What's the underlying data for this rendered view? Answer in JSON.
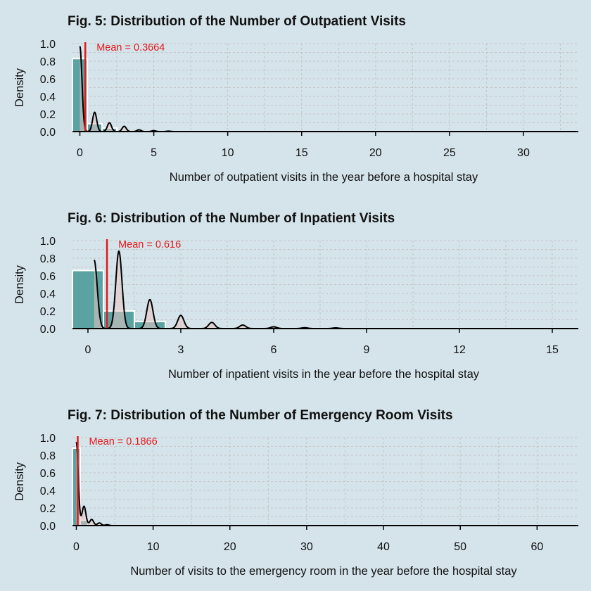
{
  "colors": {
    "background": "#d5e4eb",
    "bar_fill": "#5ba3a3",
    "bar_stroke": "#ffffff",
    "density_fill": "#e8c4c4",
    "density_line": "#000000",
    "mean_line": "#e31a1c",
    "grid": "#c4c4c4"
  },
  "chart_data": [
    {
      "type": "histogram",
      "title": "Fig. 5: Distribution of the Number of Outpatient Visits",
      "xlabel": "Number of outpatient visits in the year before a hospital stay",
      "ylabel": "Density",
      "xlim": [
        -0.5,
        33
      ],
      "ylim": [
        0,
        1.0
      ],
      "x_ticks": [
        0,
        5,
        10,
        15,
        20,
        25,
        30
      ],
      "y_ticks": [
        "0.0",
        "0.2",
        "0.4",
        "0.6",
        "0.8",
        "1.0"
      ],
      "grid": true,
      "mean_label": "Mean = 0.3664",
      "mean": 0.3664,
      "bins": [
        {
          "x0": -0.5,
          "x1": 0.5,
          "density": 0.83
        },
        {
          "x0": 0.5,
          "x1": 1.5,
          "density": 0.09
        },
        {
          "x0": 1.5,
          "x1": 2.5,
          "density": 0.04
        }
      ],
      "density_peaks": [
        {
          "x": 0,
          "y": 0.97
        },
        {
          "x": 1,
          "y": 0.22
        },
        {
          "x": 2,
          "y": 0.1
        },
        {
          "x": 3,
          "y": 0.06
        },
        {
          "x": 4,
          "y": 0.02
        },
        {
          "x": 5,
          "y": 0.01
        },
        {
          "x": 6,
          "y": 0.005
        }
      ],
      "density_end": 33,
      "bandwidth": 0.14
    },
    {
      "type": "histogram",
      "title": "Fig. 6: Distribution of the Number of Inpatient Visits",
      "xlabel": "Number of inpatient visits in the year before the hospital stay",
      "ylabel": "Density",
      "xlim": [
        -0.5,
        15.5
      ],
      "ylim": [
        0,
        1.0
      ],
      "x_ticks": [
        0,
        3,
        6,
        9,
        12,
        15
      ],
      "y_ticks": [
        "0.0",
        "0.2",
        "0.4",
        "0.6",
        "0.8",
        "1.0"
      ],
      "grid": true,
      "mean_label": "Mean = 0.616",
      "mean": 0.616,
      "bins": [
        {
          "x0": -0.5,
          "x1": 0.5,
          "density": 0.66
        },
        {
          "x0": 0.5,
          "x1": 1.5,
          "density": 0.2
        },
        {
          "x0": 1.5,
          "x1": 2.5,
          "density": 0.08
        }
      ],
      "density_peaks": [
        {
          "x": 0.2,
          "y": 0.78
        },
        {
          "x": 1,
          "y": 0.88
        },
        {
          "x": 2,
          "y": 0.33
        },
        {
          "x": 3,
          "y": 0.15
        },
        {
          "x": 4,
          "y": 0.07
        },
        {
          "x": 5,
          "y": 0.04
        },
        {
          "x": 6,
          "y": 0.02
        },
        {
          "x": 7,
          "y": 0.01
        },
        {
          "x": 8,
          "y": 0.008
        }
      ],
      "density_end": 15.5,
      "bandwidth": 0.1
    },
    {
      "type": "histogram",
      "title": "Fig. 7: Distribution of the Number of Emergency Room Visits",
      "xlabel": "Number of visits to the emergency room in the year before the hospital stay",
      "ylabel": "Density",
      "xlim": [
        -0.5,
        64
      ],
      "ylim": [
        0,
        1.0
      ],
      "x_ticks": [
        0,
        10,
        20,
        30,
        40,
        50,
        60
      ],
      "y_ticks": [
        "0.0",
        "0.2",
        "0.4",
        "0.6",
        "0.8",
        "1.0"
      ],
      "grid": true,
      "mean_label": "Mean = 0.1866",
      "mean": 0.1866,
      "bins": [
        {
          "x0": -0.5,
          "x1": 0.5,
          "density": 0.88
        },
        {
          "x0": 0.5,
          "x1": 1.5,
          "density": 0.06
        }
      ],
      "density_peaks": [
        {
          "x": 0,
          "y": 0.95
        },
        {
          "x": 1,
          "y": 0.22
        },
        {
          "x": 2,
          "y": 0.07
        },
        {
          "x": 3,
          "y": 0.03
        },
        {
          "x": 4,
          "y": 0.01
        }
      ],
      "density_end": 64,
      "bandwidth": 0.25
    }
  ]
}
